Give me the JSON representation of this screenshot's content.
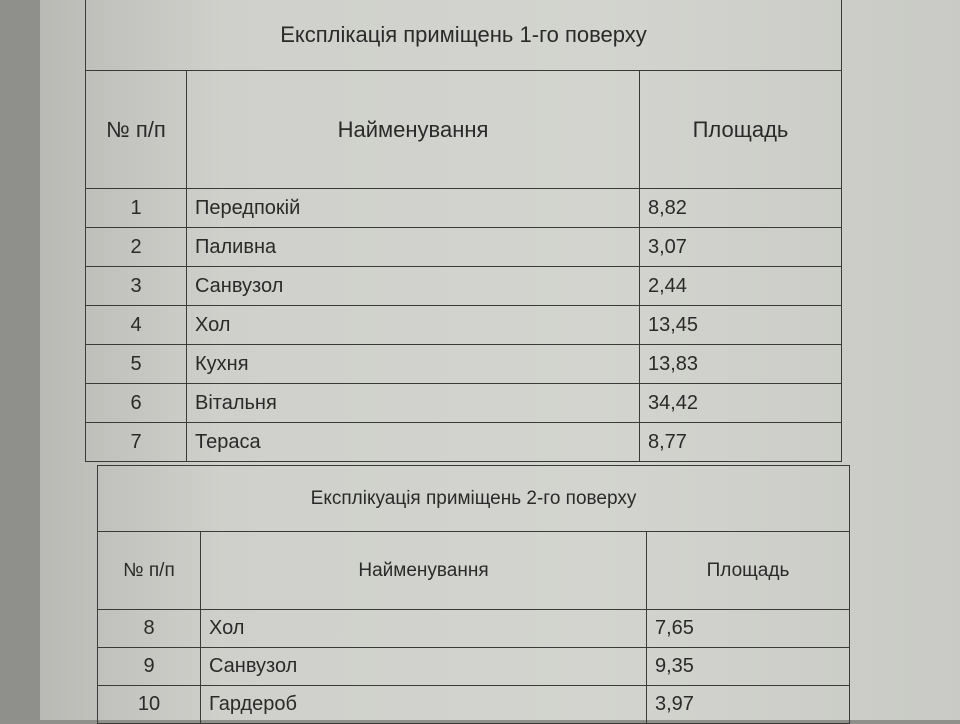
{
  "floor1": {
    "title": "Експлікація приміщень 1-го поверху",
    "headers": [
      "№ п/п",
      "Найменування",
      "Площадь"
    ],
    "rows": [
      [
        "1",
        "Передпокій",
        "8,82"
      ],
      [
        "2",
        "Паливна",
        "3,07"
      ],
      [
        "3",
        "Санвузол",
        "2,44"
      ],
      [
        "4",
        "Хол",
        "13,45"
      ],
      [
        "5",
        "Кухня",
        "13,83"
      ],
      [
        "6",
        "Вітальня",
        "34,42"
      ],
      [
        "7",
        "Тераса",
        "8,77"
      ]
    ]
  },
  "floor2": {
    "title": "Експлікуація приміщень 2-го поверху",
    "headers": [
      "№ п/п",
      "Найменування",
      "Площадь"
    ],
    "rows": [
      [
        "8",
        "Хол",
        "7,65"
      ],
      [
        "9",
        "Санвузол",
        "9,35"
      ],
      [
        "10",
        "Гардероб",
        "3,97"
      ]
    ]
  }
}
